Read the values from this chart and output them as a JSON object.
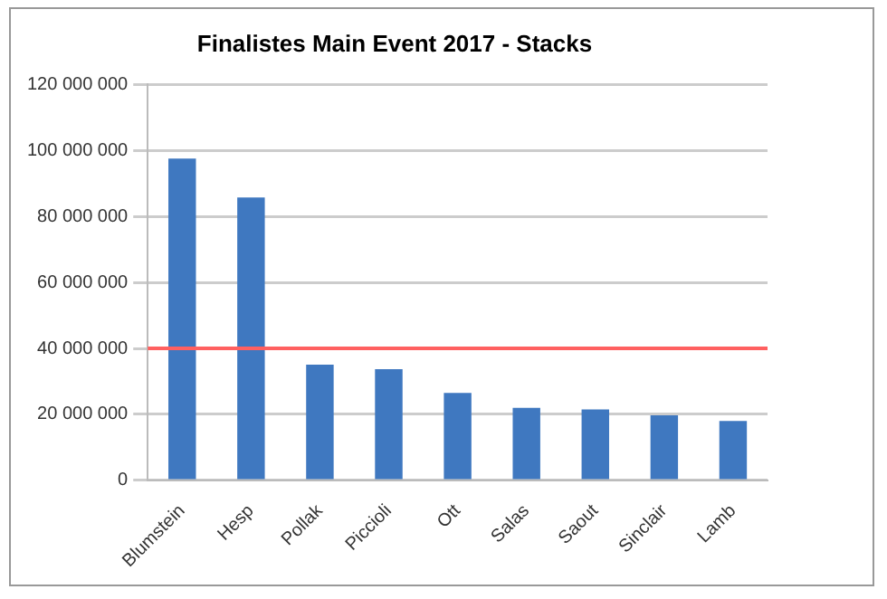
{
  "chart_data": {
    "type": "bar",
    "title": "Finalistes Main Event 2017 - Stacks",
    "categories": [
      "Blumstein",
      "Hesp",
      "Pollak",
      "Piccioli",
      "Ott",
      "Salas",
      "Saout",
      "Sinclair",
      "Lamb"
    ],
    "values": [
      97500000,
      85700000,
      35100000,
      33700000,
      26500000,
      22000000,
      21500000,
      19700000,
      18000000
    ],
    "color": "#3f78c0",
    "ylim": [
      0,
      120000000
    ],
    "yticks": [
      {
        "value": 0,
        "label": "0"
      },
      {
        "value": 20000000,
        "label": "20 000 000"
      },
      {
        "value": 40000000,
        "label": "40 000 000"
      },
      {
        "value": 60000000,
        "label": "60 000 000"
      },
      {
        "value": 80000000,
        "label": "80 000 000"
      },
      {
        "value": 100000000,
        "label": "100 000 000"
      },
      {
        "value": 120000000,
        "label": "120 000 000"
      }
    ],
    "grid": "y",
    "ref_lines": [
      {
        "axis": "y",
        "value": 40000000,
        "label": null,
        "color": "#ff6060"
      }
    ]
  }
}
